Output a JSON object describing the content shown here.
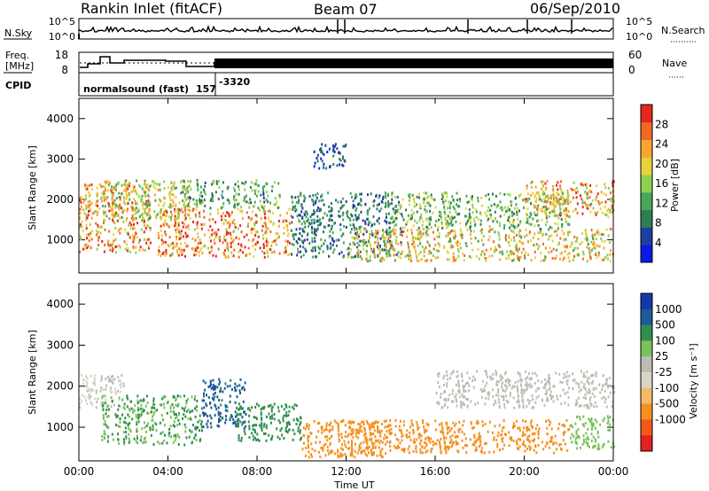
{
  "header": {
    "station": "Rankin Inlet (fitACF)",
    "beam": "Beam 07",
    "date": "06/Sep/2010"
  },
  "sky_panel": {
    "left_label": "N.Sky",
    "right_label": "N.Search",
    "left_ticks": [
      "10^5",
      "10^0"
    ],
    "right_ticks": [
      "10^5",
      "10^0"
    ]
  },
  "freq_panel": {
    "left_label_1": "Freq.",
    "left_label_2": "[MHz]",
    "right_label": "Nave",
    "left_ticks": [
      "18",
      "8"
    ],
    "right_ticks": [
      "60",
      "0"
    ]
  },
  "cpid": {
    "label": "CPID",
    "mode": "normalsound (fast)",
    "id1": "157",
    "id2": "-3320"
  },
  "colors": {
    "power_scale": [
      "#0a1ae6",
      "#1d3f9f",
      "#2e7d52",
      "#4aa65a",
      "#8fd050",
      "#e8d23a",
      "#f7a531",
      "#f26a22",
      "#e5281d"
    ],
    "velocity_scale": [
      "#e81f1f",
      "#f25a1c",
      "#f5901f",
      "#f5b968",
      "#d9d3c8",
      "#bdbdb5",
      "#79c25a",
      "#2f8e4e",
      "#1e5a9a",
      "#1637a8"
    ]
  },
  "chart_data": [
    {
      "type": "heatmap",
      "title": "Power",
      "ylabel": "Slant Range [km]",
      "yticks": [
        "1000",
        "2000",
        "3000",
        "4000"
      ],
      "ylim": [
        180,
        4500
      ],
      "colorbar_label": "Power [dB]",
      "colorbar_ticks": [
        "4",
        "8",
        "12",
        "16",
        "20",
        "24",
        "28"
      ],
      "clim": [
        0,
        32
      ],
      "bands": [
        {
          "t0": 0.0,
          "t1": 3.2,
          "r0": 700,
          "r1": 2400,
          "level": 24
        },
        {
          "t0": 1.0,
          "t1": 5.0,
          "r0": 1500,
          "r1": 2500,
          "level": 18
        },
        {
          "t0": 3.5,
          "t1": 9.5,
          "r0": 600,
          "r1": 1800,
          "level": 25
        },
        {
          "t0": 4.5,
          "t1": 9.0,
          "r0": 1800,
          "r1": 2500,
          "level": 12
        },
        {
          "t0": 9.5,
          "t1": 14.5,
          "r0": 600,
          "r1": 2200,
          "level": 9
        },
        {
          "t0": 10.5,
          "t1": 12.0,
          "r0": 2800,
          "r1": 3400,
          "level": 6
        },
        {
          "t0": 12.0,
          "t1": 24.0,
          "r0": 500,
          "r1": 1300,
          "level": 20
        },
        {
          "t0": 14.0,
          "t1": 22.0,
          "r0": 1300,
          "r1": 2200,
          "level": 14
        },
        {
          "t0": 20.0,
          "t1": 24.0,
          "r0": 1600,
          "r1": 2500,
          "level": 22
        }
      ]
    },
    {
      "type": "heatmap",
      "title": "Velocity",
      "xlabel": "Time UT",
      "ylabel": "Slant Range [km]",
      "xticks": [
        "00:00",
        "04:00",
        "08:00",
        "12:00",
        "16:00",
        "20:00",
        "00:00"
      ],
      "xlim": [
        0,
        24
      ],
      "yticks": [
        "1000",
        "2000",
        "3000",
        "4000"
      ],
      "ylim": [
        180,
        4500
      ],
      "colorbar_label": "Velocity [m s⁻¹]",
      "colorbar_ticks": [
        "1000",
        "500",
        "100",
        "25",
        "-25",
        "-100",
        "-500",
        "-1000"
      ],
      "bands": [
        {
          "t0": 0.0,
          "t1": 2.0,
          "r0": 1500,
          "r1": 2300,
          "level": 0
        },
        {
          "t0": 1.0,
          "t1": 5.5,
          "r0": 600,
          "r1": 1800,
          "level": 100
        },
        {
          "t0": 5.5,
          "t1": 7.5,
          "r0": 1000,
          "r1": 2200,
          "level": 600
        },
        {
          "t0": 7.0,
          "t1": 10.0,
          "r0": 700,
          "r1": 1600,
          "level": 300
        },
        {
          "t0": 10.0,
          "t1": 14.0,
          "r0": 300,
          "r1": 1200,
          "level": -300
        },
        {
          "t0": 12.0,
          "t1": 22.0,
          "r0": 400,
          "r1": 1200,
          "level": -150
        },
        {
          "t0": 16.0,
          "t1": 24.0,
          "r0": 1500,
          "r1": 2400,
          "level": 10
        },
        {
          "t0": 22.0,
          "t1": 24.0,
          "r0": 500,
          "r1": 1300,
          "level": 50
        }
      ]
    }
  ]
}
